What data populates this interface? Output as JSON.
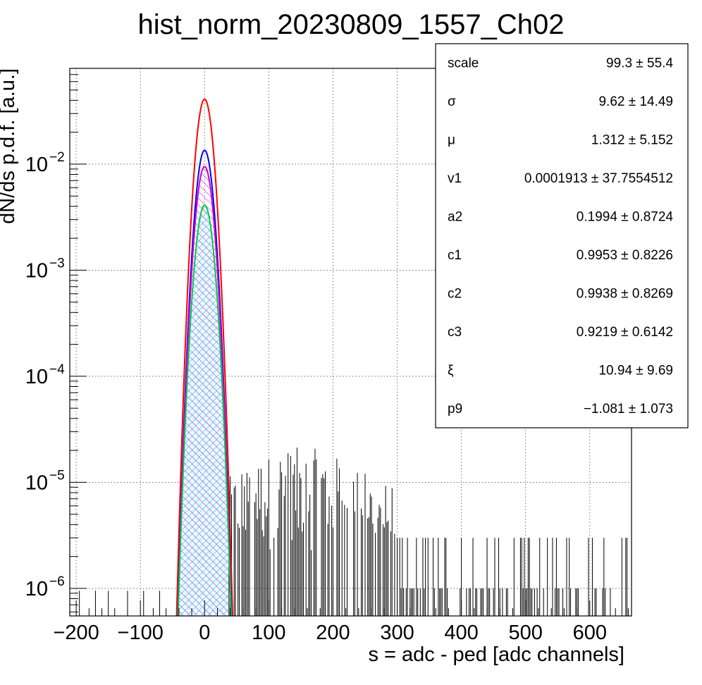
{
  "chart_data": {
    "type": "histogram",
    "title": "hist_norm_20230809_1557_Ch02",
    "xlabel": "s = adc - ped [adc channels]",
    "ylabel": "dN/ds p.d.f. [a.u.]",
    "xlim": [
      -210,
      665
    ],
    "ylim": [
      5.5e-07,
      0.08
    ],
    "log_y": true,
    "grid": true,
    "x_ticks": [
      -200,
      -100,
      0,
      100,
      200,
      300,
      400,
      500,
      600
    ],
    "x_tick_labels": [
      "−200",
      "−100",
      "0",
      "100",
      "200",
      "300",
      "400",
      "500",
      "600"
    ],
    "y_ticks": [
      1e-06,
      1e-05,
      0.0001,
      0.001,
      0.01
    ],
    "y_tick_labels": [
      {
        "base": "10",
        "exp": "−6"
      },
      {
        "base": "10",
        "exp": "−5"
      },
      {
        "base": "10",
        "exp": "−4"
      },
      {
        "base": "10",
        "exp": "−3"
      },
      {
        "base": "10",
        "exp": "−2"
      }
    ],
    "curves": [
      {
        "color": "#ff0000",
        "peak": 0.041,
        "mu": 0,
        "sigma": 9.2,
        "fill": "none"
      },
      {
        "color": "#0000ff",
        "peak": 0.0135,
        "mu": 0,
        "sigma": 9.3,
        "fill": "none"
      },
      {
        "color": "#cc00cc",
        "peak": 0.0095,
        "mu": 0,
        "sigma": 9.4,
        "fill": "hatch-magenta"
      },
      {
        "color": "#00cc44",
        "peak": 0.0041,
        "mu": 0,
        "sigma": 9.8,
        "fill": "hatch-cyan"
      }
    ],
    "tail": {
      "color": "#000000",
      "level_low": 1e-06,
      "level_high": 3e-06,
      "level_peak": 1.8e-05,
      "x_range": [
        38,
        665
      ]
    }
  },
  "stats_box": {
    "rows": [
      {
        "name": "scale",
        "value": "99.3 ± 55.4"
      },
      {
        "name": "σ",
        "value": "9.62 ± 14.49"
      },
      {
        "name": "μ",
        "value": "1.312 ± 5.152"
      },
      {
        "name": "v1",
        "value": "0.0001913 ± 37.7554512"
      },
      {
        "name": "a2",
        "value": "0.1994 ± 0.8724"
      },
      {
        "name": "c1",
        "value": "0.9953 ± 0.8226"
      },
      {
        "name": "c2",
        "value": "0.9938 ± 0.8269"
      },
      {
        "name": "c3",
        "value": "0.9219 ± 0.6142"
      },
      {
        "name": "ξ",
        "value": "10.94 ± 9.69"
      },
      {
        "name": "p9",
        "value": "−1.081 ± 1.073"
      }
    ]
  }
}
